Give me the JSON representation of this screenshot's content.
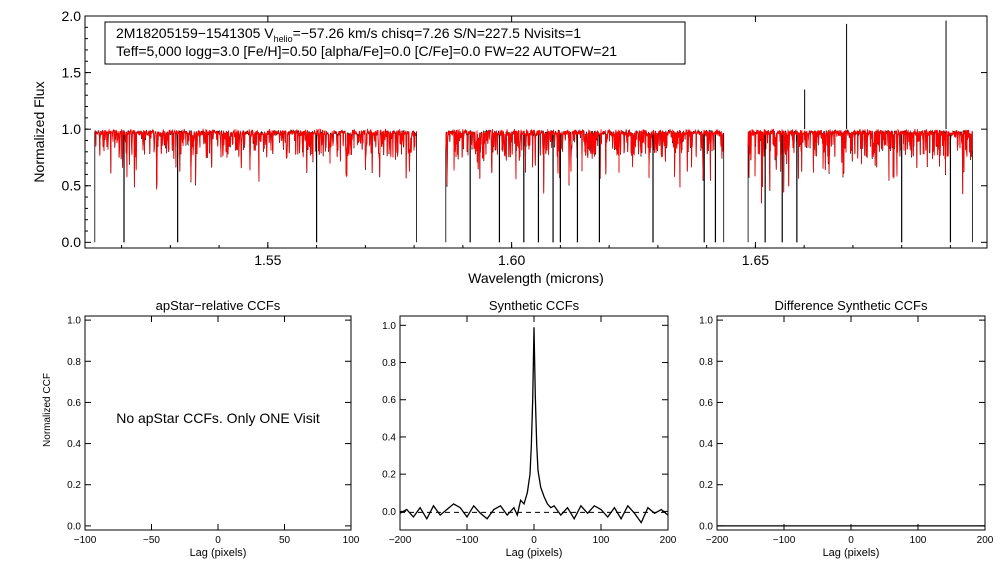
{
  "chart_data": [
    {
      "type": "line",
      "panel": "spectrum",
      "info_line1_pre": "2M18205159−1541305  V",
      "info_line1_sub": "helio",
      "info_line1_post": "=−57.26 km/s  chisq=7.26  S/N=227.5  Nvisits=1",
      "info_line2": "Teff=5,000 logg=3.0 [Fe/H]=0.50 [alpha/Fe]=0.0 [C/Fe]=0.0 FW=22 AUTOFW=21",
      "xlabel": "Wavelength (microns)",
      "ylabel": "Normalized Flux",
      "xlim": [
        1.5125,
        1.6975
      ],
      "ylim": [
        -0.05,
        2.0
      ],
      "xticks": [
        "1.55",
        "1.60",
        "1.65"
      ],
      "yticks": [
        "0.0",
        "0.5",
        "1.0",
        "1.5",
        "2.0"
      ],
      "series": [
        {
          "color": "#000000"
        },
        {
          "color": "#ff0000"
        }
      ],
      "chips": [
        [
          1.5145,
          1.5805
        ],
        [
          1.5865,
          1.6435
        ],
        [
          1.6485,
          1.6945
        ]
      ],
      "continuum": 0.97,
      "spikes": [
        {
          "x": 1.6687,
          "y": 1.93
        },
        {
          "x": 1.6891,
          "y": 1.96
        },
        {
          "x": 1.6601,
          "y": 1.35
        }
      ],
      "dropouts": [
        1.5205,
        1.5315,
        1.56,
        1.5915,
        1.5975,
        1.6025,
        1.6055,
        1.6085,
        1.61,
        1.6135,
        1.618,
        1.629,
        1.6395,
        1.6418,
        1.652,
        1.6555,
        1.6585,
        1.68,
        1.69
      ]
    },
    {
      "type": "line",
      "panel": "apstar-ccf",
      "title": "apStar−relative CCFs",
      "xlabel": "Lag (pixels)",
      "ylabel": "Normalized CCF",
      "xlim": [
        -100,
        100
      ],
      "ylim": [
        -0.02,
        1.02
      ],
      "xticks": [
        "−100",
        "−50",
        "0",
        "50",
        "100"
      ],
      "yticks": [
        "0.0",
        "0.2",
        "0.4",
        "0.6",
        "0.8",
        "1.0"
      ],
      "message": "No apStar CCFs.  Only ONE Visit"
    },
    {
      "type": "line",
      "panel": "synthetic-ccf",
      "title": "Synthetic CCFs",
      "xlabel": "Lag (pixels)",
      "xlim": [
        -200,
        200
      ],
      "ylim": [
        -0.1,
        1.05
      ],
      "xticks": [
        "−200",
        "−100",
        "0",
        "100",
        "200"
      ],
      "yticks": [
        "0.0",
        "0.2",
        "0.4",
        "0.6",
        "0.8",
        "1.0"
      ],
      "series": [
        {
          "x": [
            -200,
            -190,
            -180,
            -170,
            -160,
            -150,
            -140,
            -130,
            -120,
            -110,
            -100,
            -90,
            -80,
            -70,
            -60,
            -50,
            -40,
            -30,
            -25,
            -20,
            -15,
            -10,
            -6,
            -4,
            -2,
            0,
            2,
            4,
            6,
            10,
            15,
            20,
            25,
            30,
            40,
            50,
            60,
            70,
            80,
            90,
            100,
            110,
            120,
            130,
            140,
            150,
            160,
            170,
            180,
            190,
            200
          ],
          "values": [
            -0.01,
            0.01,
            -0.03,
            0.02,
            -0.04,
            0.03,
            -0.02,
            0.01,
            0.04,
            0.02,
            -0.03,
            0.03,
            -0.01,
            -0.04,
            0.01,
            0.03,
            -0.02,
            0.02,
            -0.02,
            0.06,
            0.04,
            0.1,
            0.2,
            0.35,
            0.6,
            0.99,
            0.62,
            0.36,
            0.22,
            0.13,
            0.08,
            0.04,
            0.02,
            0.03,
            -0.02,
            0.02,
            -0.04,
            0.03,
            -0.01,
            0.03,
            0.01,
            -0.03,
            0.02,
            -0.04,
            0.03,
            -0.01,
            -0.06,
            0.02,
            -0.01,
            0.01,
            -0.02
          ]
        }
      ],
      "reference_line": -0.005
    },
    {
      "type": "line",
      "panel": "difference-ccf",
      "title": "Difference Synthetic CCFs",
      "xlabel": "Lag (pixels)",
      "xlim": [
        -200,
        200
      ],
      "ylim": [
        -0.02,
        1.02
      ],
      "xticks": [
        "−200",
        "−100",
        "0",
        "100",
        "200"
      ],
      "yticks": [
        "0.0",
        "0.2",
        "0.4",
        "0.6",
        "0.8",
        "1.0"
      ]
    }
  ]
}
